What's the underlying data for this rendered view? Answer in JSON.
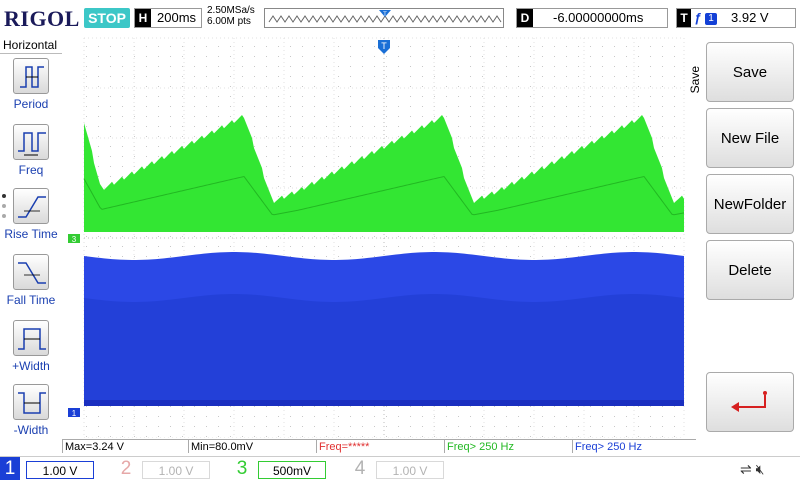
{
  "brand": "RIGOL",
  "status": "STOP",
  "horizontal": {
    "label": "H",
    "timebase": "200ms"
  },
  "acquisition": {
    "sample_rate": "2.50MSa/s",
    "memory_depth": "6.00M pts"
  },
  "delay": {
    "label": "D",
    "value": "-6.00000000ms"
  },
  "trigger": {
    "label": "T",
    "source": "1",
    "level": "3.92 V"
  },
  "left_menu": {
    "title": "Horizontal",
    "items": [
      {
        "label": "Period"
      },
      {
        "label": "Freq"
      },
      {
        "label": "Rise Time"
      },
      {
        "label": "Fall Time"
      },
      {
        "label": "+Width"
      },
      {
        "label": "-Width"
      }
    ]
  },
  "right_menu": {
    "title": "Save",
    "buttons": [
      {
        "label": "Save"
      },
      {
        "label": "New File"
      },
      {
        "label": "NewFolder"
      },
      {
        "label": "Delete"
      }
    ],
    "back_icon": "return-arrow-icon"
  },
  "readouts": {
    "max": "Max=3.24 V",
    "min": "Min=80.0mV",
    "freq_ch1": "Freq=*****",
    "freq_ch3a": "Freq> 250 Hz",
    "freq_ch3b": "Freq> 250 Hz"
  },
  "channels": [
    {
      "num": "1",
      "scale": "1.00 V",
      "color": "#1a3fd6",
      "active": true
    },
    {
      "num": "2",
      "scale": "1.00 V",
      "color": "#e6a8a8",
      "active": false
    },
    {
      "num": "3",
      "scale": "500mV",
      "color": "#33cc33",
      "active": true
    },
    {
      "num": "4",
      "scale": "1.00 V",
      "color": "#b3b3b3",
      "active": false
    }
  ],
  "markers": {
    "ch3_marker": "3",
    "ch1_marker": "1",
    "trigger_marker": "T"
  },
  "colors": {
    "ch1": "#1a3fd6",
    "ch3": "#33e633",
    "grid": "#d8d8d8",
    "status": "#3cc7c7",
    "freq_warn": "#e03030"
  },
  "icons": [
    "usb-icon",
    "speaker-mute-icon"
  ]
}
